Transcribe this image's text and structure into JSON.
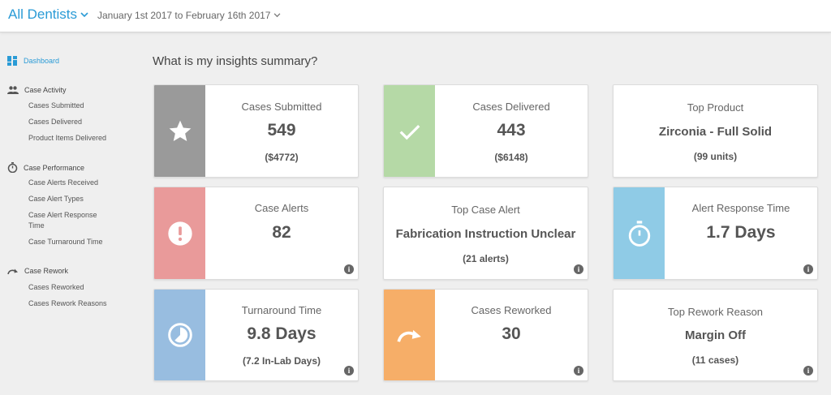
{
  "header": {
    "scope_label": "All Dentists",
    "date_range": "January 1st 2017 to February 16th 2017"
  },
  "sidebar": {
    "dashboard": "Dashboard",
    "sections": [
      {
        "label": "Case Activity",
        "icon": "people-icon",
        "items": [
          "Cases Submitted",
          "Cases Delivered",
          "Product Items Delivered"
        ]
      },
      {
        "label": "Case Performance",
        "icon": "stopwatch-icon",
        "items": [
          "Case Alerts Received",
          "Case Alert Types",
          "Case Alert Response Time",
          "Case Turnaround Time"
        ]
      },
      {
        "label": "Case Rework",
        "icon": "redo-arrow-icon",
        "items": [
          "Cases Reworked",
          "Cases Rework Reasons"
        ]
      }
    ]
  },
  "main": {
    "title": "What is my insights summary?",
    "cards": {
      "cases_submitted": {
        "label": "Cases Submitted",
        "value": "549",
        "sub": "($4772)",
        "icon": "star-icon",
        "color": "#9a9a9a"
      },
      "cases_delivered": {
        "label": "Cases Delivered",
        "value": "443",
        "sub": "($6148)",
        "icon": "check-icon",
        "color": "#b5d9a6"
      },
      "top_product": {
        "label": "Top Product",
        "value": "Zirconia - Full Solid",
        "sub": "(99 units)"
      },
      "case_alerts": {
        "label": "Case Alerts",
        "value": "82",
        "icon": "alert-icon",
        "color": "#e99a9a"
      },
      "top_case_alert": {
        "label": "Top Case Alert",
        "value": "Fabrication Instruction Unclear",
        "sub": "(21 alerts)"
      },
      "alert_response_time": {
        "label": "Alert Response Time",
        "value": "1.7 Days",
        "icon": "stopwatch-icon",
        "color": "#8fcbe6"
      },
      "turnaround_time": {
        "label": "Turnaround Time",
        "value": "9.8 Days",
        "sub": "(7.2 In-Lab Days)",
        "icon": "clock-icon",
        "color": "#98bde0"
      },
      "cases_reworked": {
        "label": "Cases Reworked",
        "value": "30",
        "icon": "redo-arrow-icon",
        "color": "#f6ae68"
      },
      "top_rework_reason": {
        "label": "Top Rework Reason",
        "value": "Margin Off",
        "sub": "(11 cases)"
      }
    },
    "info_glyph": "i"
  }
}
